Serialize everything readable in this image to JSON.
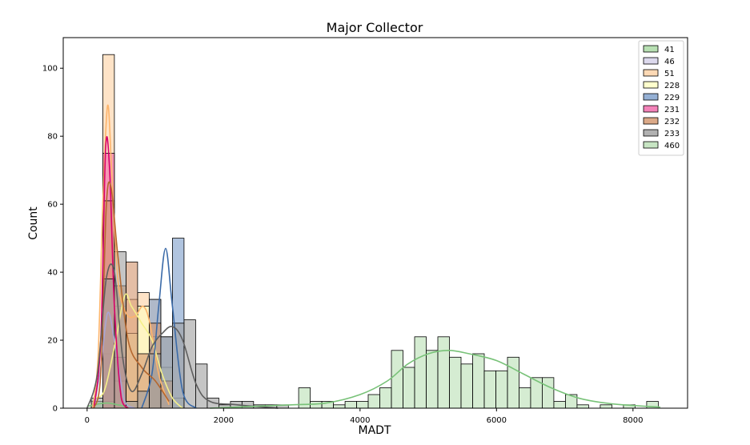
{
  "chart_data": {
    "type": "bar",
    "subtype": "histogram with kde overlay",
    "title": "Major Collector",
    "xlabel": "MADT",
    "ylabel": "Count",
    "xlim": [
      -350,
      8800
    ],
    "ylim": [
      0,
      109
    ],
    "xticks": [
      0,
      2000,
      4000,
      6000,
      8000
    ],
    "yticks": [
      0,
      20,
      40,
      60,
      80,
      100
    ],
    "grid": false,
    "legend_position": "top-right",
    "bin_width": 170,
    "series": [
      {
        "name": "41",
        "color": "#a6d8a0",
        "line_color": "#7bc47a",
        "bins": [
          [
            60,
            2
          ],
          [
            230,
            1
          ],
          [
            400,
            1
          ]
        ],
        "kde": [
          [
            0,
            0.5
          ],
          [
            150,
            1.2
          ],
          [
            300,
            1.5
          ],
          [
            450,
            1
          ],
          [
            600,
            0.3
          ]
        ]
      },
      {
        "name": "46",
        "color": "#d3d0e8",
        "line_color": "#a9a4d4",
        "bins": [
          [
            230,
            16
          ],
          [
            400,
            30
          ]
        ],
        "kde": [
          [
            100,
            0
          ],
          [
            200,
            12
          ],
          [
            300,
            28
          ],
          [
            400,
            20
          ],
          [
            550,
            2
          ],
          [
            700,
            0
          ]
        ]
      },
      {
        "name": "51",
        "color": "#fdd0a2",
        "line_color": "#fdb46b",
        "bins": [
          [
            230,
            104
          ],
          [
            400,
            36
          ],
          [
            570,
            32
          ],
          [
            740,
            34
          ],
          [
            910,
            32
          ]
        ],
        "kde": [
          [
            80,
            0
          ],
          [
            160,
            15
          ],
          [
            230,
            60
          ],
          [
            300,
            89
          ],
          [
            360,
            70
          ],
          [
            450,
            38
          ],
          [
            570,
            28
          ],
          [
            700,
            27
          ],
          [
            820,
            30
          ],
          [
            920,
            25
          ],
          [
            1050,
            10
          ],
          [
            1200,
            1
          ]
        ]
      },
      {
        "name": "228",
        "color": "#ffffc0",
        "line_color": "#f5f08a",
        "bins": [
          [
            230,
            2
          ],
          [
            400,
            8
          ],
          [
            570,
            22
          ],
          [
            740,
            30
          ],
          [
            910,
            21
          ],
          [
            1080,
            12
          ],
          [
            1250,
            3
          ]
        ],
        "kde": [
          [
            100,
            3
          ],
          [
            250,
            5
          ],
          [
            400,
            18
          ],
          [
            550,
            33
          ],
          [
            650,
            30
          ],
          [
            800,
            25
          ],
          [
            950,
            20
          ],
          [
            1100,
            10
          ],
          [
            1250,
            3
          ],
          [
            1400,
            0
          ]
        ]
      },
      {
        "name": "229",
        "color": "#7b9cc9",
        "line_color": "#3a6aa8",
        "bins": [
          [
            910,
            32
          ],
          [
            1080,
            21
          ],
          [
            1250,
            50
          ]
        ],
        "kde": [
          [
            800,
            0
          ],
          [
            950,
            10
          ],
          [
            1050,
            30
          ],
          [
            1150,
            47
          ],
          [
            1250,
            30
          ],
          [
            1400,
            5
          ],
          [
            1600,
            0
          ]
        ]
      },
      {
        "name": "231",
        "color": "#f064a8",
        "line_color": "#d6006a",
        "bins": [
          [
            230,
            75
          ],
          [
            400,
            15
          ]
        ],
        "kde": [
          [
            100,
            0
          ],
          [
            200,
            20
          ],
          [
            270,
            76
          ],
          [
            330,
            70
          ],
          [
            400,
            30
          ],
          [
            500,
            3
          ],
          [
            600,
            0
          ]
        ]
      },
      {
        "name": "232",
        "color": "#d2936a",
        "line_color": "#b5672e",
        "bins": [
          [
            230,
            61
          ],
          [
            400,
            36
          ],
          [
            570,
            43
          ],
          [
            740,
            16
          ],
          [
            910,
            25
          ],
          [
            1080,
            8
          ]
        ],
        "kde": [
          [
            100,
            0
          ],
          [
            200,
            10
          ],
          [
            280,
            59
          ],
          [
            350,
            65
          ],
          [
            450,
            45
          ],
          [
            600,
            20
          ],
          [
            800,
            12
          ],
          [
            1000,
            8
          ],
          [
            1200,
            2
          ]
        ]
      },
      {
        "name": "233",
        "color": "#9e9e9e",
        "line_color": "#5e5e5e",
        "bins": [
          [
            60,
            3
          ],
          [
            230,
            38
          ],
          [
            400,
            46
          ],
          [
            570,
            2
          ],
          [
            740,
            5
          ],
          [
            910,
            16
          ],
          [
            1080,
            21
          ],
          [
            1250,
            25
          ],
          [
            1420,
            26
          ],
          [
            1590,
            13
          ],
          [
            1760,
            3
          ],
          [
            1930,
            1
          ],
          [
            2100,
            2
          ],
          [
            2270,
            2
          ],
          [
            2440,
            1
          ],
          [
            2610,
            1
          ],
          [
            2780,
            1
          ]
        ],
        "kde": [
          [
            0,
            0
          ],
          [
            150,
            10
          ],
          [
            280,
            38
          ],
          [
            400,
            40
          ],
          [
            520,
            15
          ],
          [
            650,
            5
          ],
          [
            800,
            10
          ],
          [
            950,
            18
          ],
          [
            1100,
            22
          ],
          [
            1250,
            24
          ],
          [
            1400,
            20
          ],
          [
            1600,
            7
          ],
          [
            1800,
            2
          ],
          [
            2200,
            1
          ],
          [
            2800,
            0
          ]
        ]
      },
      {
        "name": "460",
        "color": "#b9dfb4",
        "line_color": "#78c278",
        "bins": [
          [
            3100,
            6
          ],
          [
            3270,
            2
          ],
          [
            3440,
            2
          ],
          [
            3610,
            1
          ],
          [
            3780,
            2
          ],
          [
            3950,
            2
          ],
          [
            4120,
            4
          ],
          [
            4290,
            6
          ],
          [
            4460,
            17
          ],
          [
            4630,
            12
          ],
          [
            4800,
            21
          ],
          [
            4970,
            17
          ],
          [
            5140,
            21
          ],
          [
            5310,
            15
          ],
          [
            5480,
            13
          ],
          [
            5650,
            16
          ],
          [
            5820,
            11
          ],
          [
            5990,
            11
          ],
          [
            6160,
            15
          ],
          [
            6330,
            6
          ],
          [
            6500,
            9
          ],
          [
            6670,
            9
          ],
          [
            6840,
            2
          ],
          [
            7010,
            4
          ],
          [
            7180,
            1
          ],
          [
            7520,
            1
          ],
          [
            7860,
            1
          ],
          [
            8200,
            2
          ]
        ],
        "kde": [
          [
            1800,
            0
          ],
          [
            2400,
            0.5
          ],
          [
            3000,
            1
          ],
          [
            3500,
            1.5
          ],
          [
            4000,
            4
          ],
          [
            4400,
            8
          ],
          [
            4700,
            13
          ],
          [
            5000,
            16
          ],
          [
            5300,
            17
          ],
          [
            5600,
            16
          ],
          [
            6000,
            14
          ],
          [
            6400,
            10
          ],
          [
            6800,
            6
          ],
          [
            7200,
            3
          ],
          [
            7600,
            1.5
          ],
          [
            8000,
            0.8
          ],
          [
            8400,
            0.3
          ]
        ]
      }
    ]
  }
}
